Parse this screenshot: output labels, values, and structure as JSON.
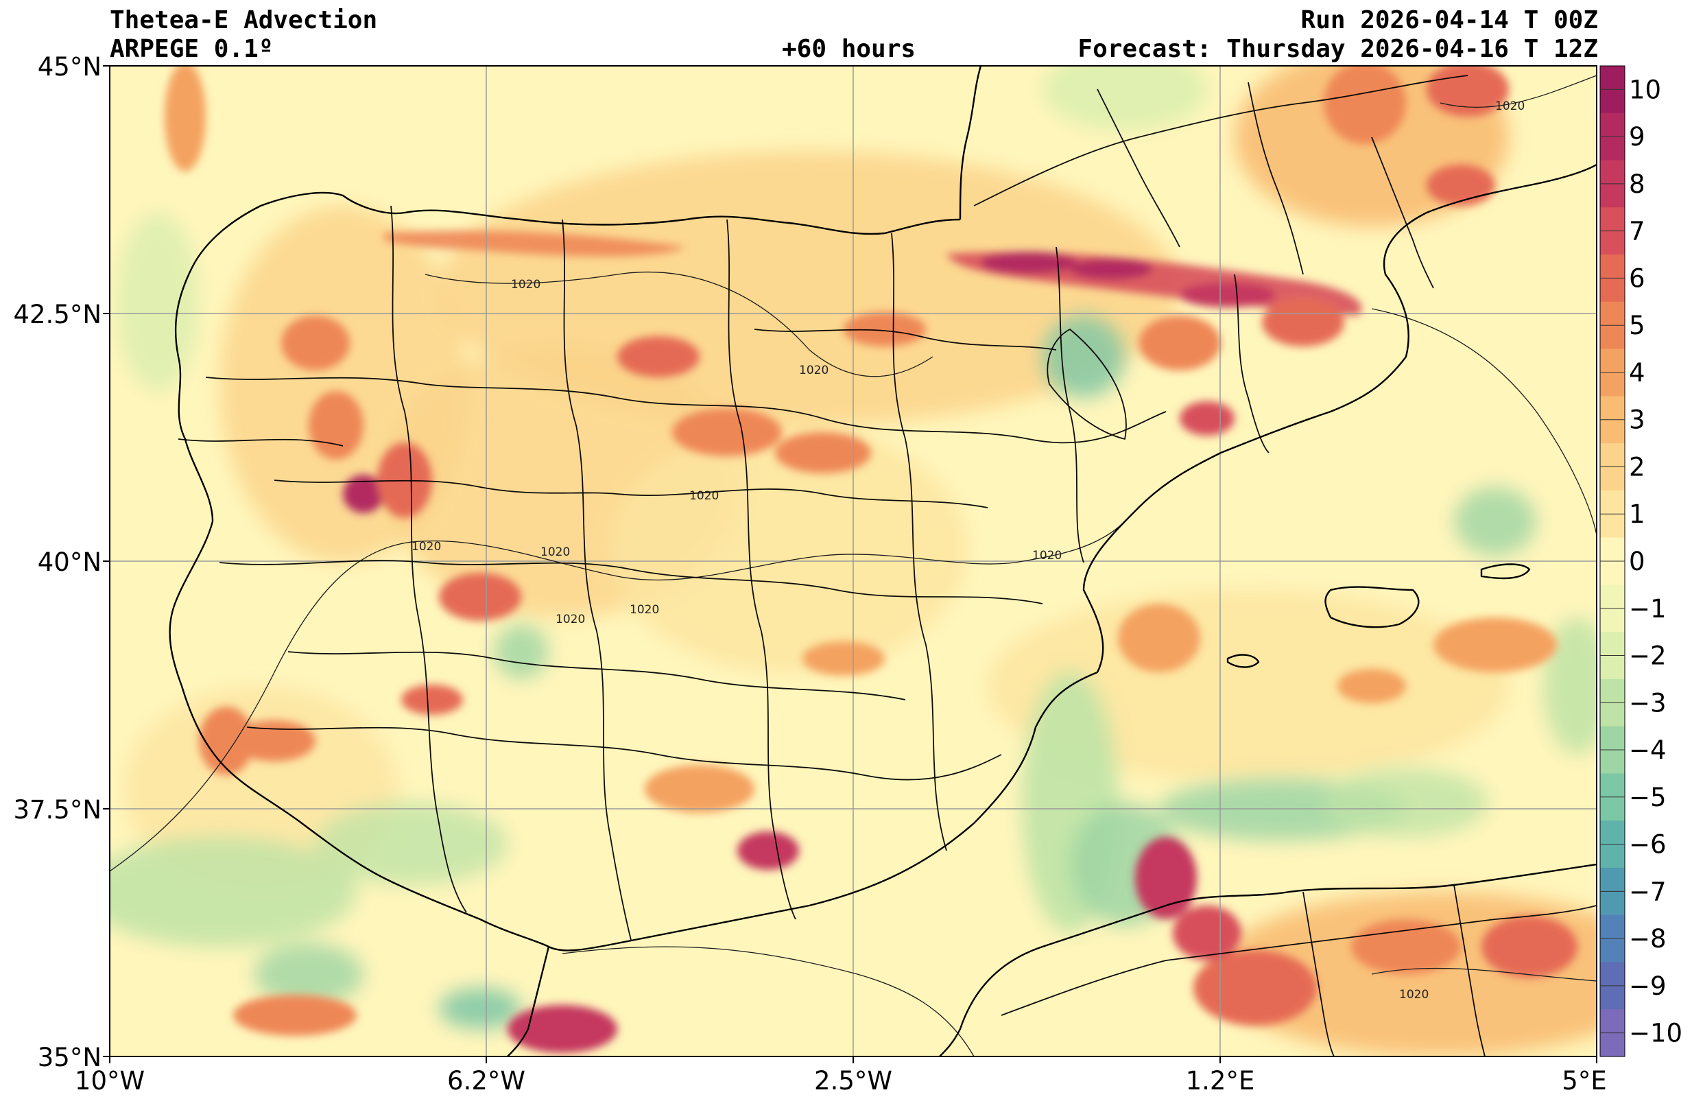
{
  "header": {
    "title": "Thetea-E Advection",
    "model": "ARPEGE 0.1º",
    "lead": "+60 hours",
    "run": "Run 2026-04-14 T 00Z",
    "forecast": "Forecast: Thursday 2026-04-16 T 12Z"
  },
  "map": {
    "extent": {
      "lon_min": -10,
      "lon_max": 5,
      "lat_min": 35,
      "lat_max": 45
    },
    "lat_ticks": [
      {
        "value": 45,
        "label": "45°N"
      },
      {
        "value": 42.5,
        "label": "42.5°N"
      },
      {
        "value": 40,
        "label": "40°N"
      },
      {
        "value": 37.5,
        "label": "37.5°N"
      },
      {
        "value": 35,
        "label": "35°N"
      }
    ],
    "lon_ticks": [
      {
        "value": -10,
        "label": "10°W"
      },
      {
        "value": -6.2,
        "label": "6.2°W"
      },
      {
        "value": -2.5,
        "label": "2.5°W"
      },
      {
        "value": 1.2,
        "label": "1.2°E"
      },
      {
        "value": 5,
        "label": "5°E"
      }
    ],
    "gridlines": true,
    "isobar_label": "1020"
  },
  "colorbar": {
    "levels": [
      10,
      9,
      8,
      7,
      6,
      5,
      4,
      3,
      2,
      1,
      0,
      -1,
      -2,
      -3,
      -4,
      -5,
      -6,
      -7,
      -8,
      -9,
      -10
    ],
    "labels": [
      "10",
      "9",
      "8",
      "7",
      "6",
      "5",
      "4",
      "3",
      "2",
      "1",
      "0",
      "−1",
      "−2",
      "−3",
      "−4",
      "−5",
      "−6",
      "−7",
      "−8",
      "−9",
      "−10"
    ],
    "colors": [
      "#9e1d5e",
      "#b22a60",
      "#c5395f",
      "#d8505b",
      "#e56b55",
      "#ee8756",
      "#f4a261",
      "#f8bd72",
      "#fbd38a",
      "#fde5a0",
      "#fff6bc",
      "#f1f5b6",
      "#dcefae",
      "#bfe3a6",
      "#9dd5a4",
      "#7cc7a6",
      "#5fb3ab",
      "#4f9ab1",
      "#5282b8",
      "#5f6db4",
      "#7c6bb8"
    ]
  },
  "colors": {
    "coast": "#000000",
    "grid": "#9a9a9a",
    "isobar": "#1a1a1a",
    "field_base": "#fff6bc"
  }
}
